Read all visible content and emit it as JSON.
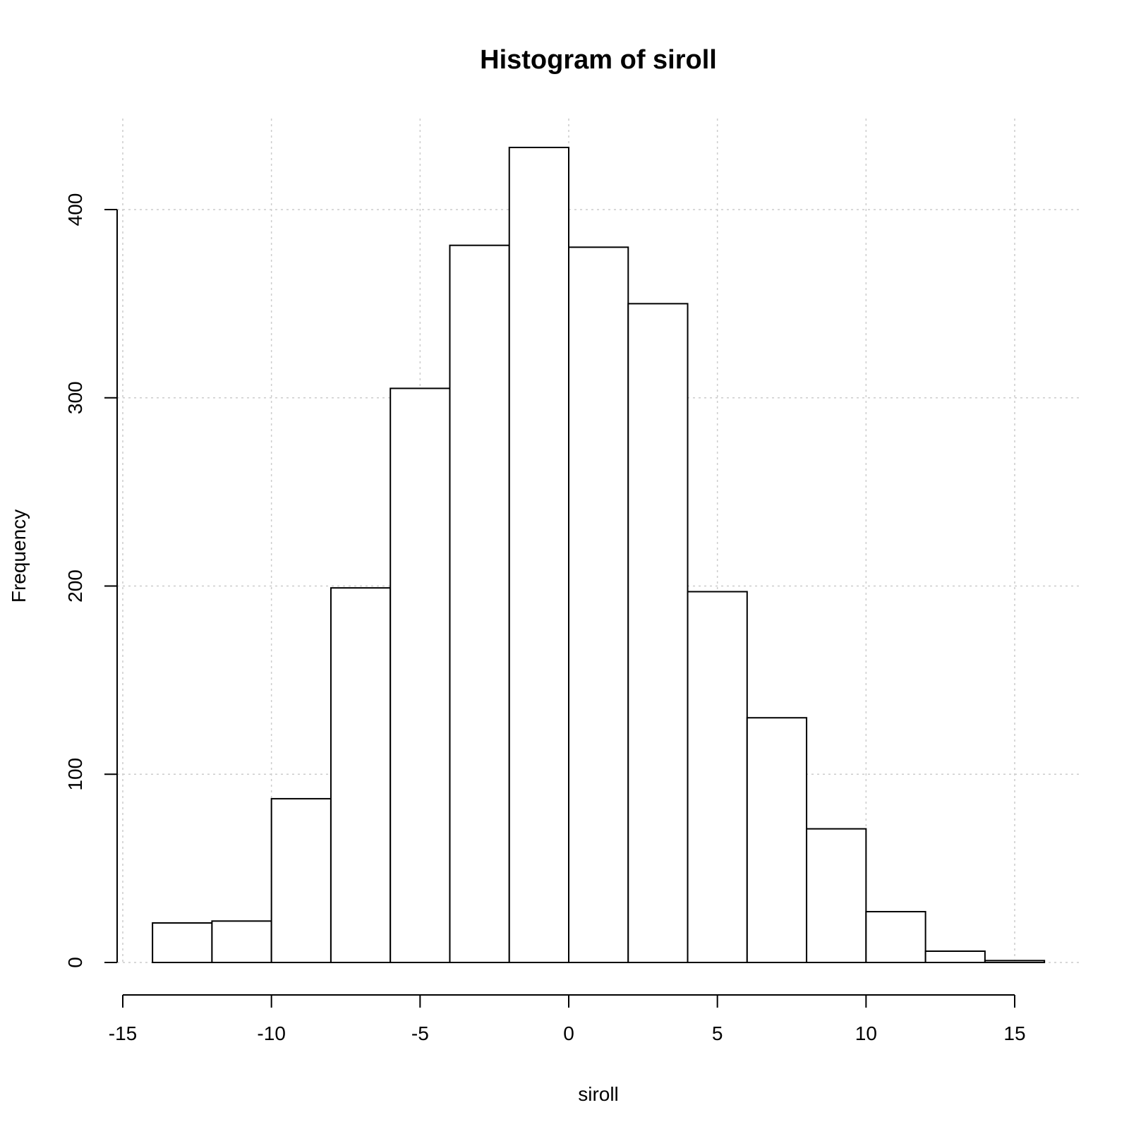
{
  "chart_data": {
    "type": "bar",
    "subtype": "histogram",
    "title": "Histogram of siroll",
    "xlabel": "siroll",
    "ylabel": "Frequency",
    "xlim": [
      -15,
      17
    ],
    "ylim": [
      0,
      440
    ],
    "x_ticks": [
      -15,
      -10,
      -5,
      0,
      5,
      10,
      15
    ],
    "y_ticks": [
      0,
      100,
      200,
      300,
      400
    ],
    "grid": true,
    "bins": [
      {
        "from": -14,
        "to": -12,
        "count": 21
      },
      {
        "from": -12,
        "to": -10,
        "count": 22
      },
      {
        "from": -10,
        "to": -8,
        "count": 87
      },
      {
        "from": -8,
        "to": -6,
        "count": 199
      },
      {
        "from": -6,
        "to": -4,
        "count": 305
      },
      {
        "from": -4,
        "to": -2,
        "count": 381
      },
      {
        "from": -2,
        "to": 0,
        "count": 433
      },
      {
        "from": 0,
        "to": 2,
        "count": 380
      },
      {
        "from": 2,
        "to": 4,
        "count": 350
      },
      {
        "from": 4,
        "to": 6,
        "count": 197
      },
      {
        "from": 6,
        "to": 8,
        "count": 130
      },
      {
        "from": 8,
        "to": 10,
        "count": 71
      },
      {
        "from": 10,
        "to": 12,
        "count": 27
      },
      {
        "from": 12,
        "to": 14,
        "count": 6
      },
      {
        "from": 14,
        "to": 16,
        "count": 1
      }
    ]
  }
}
